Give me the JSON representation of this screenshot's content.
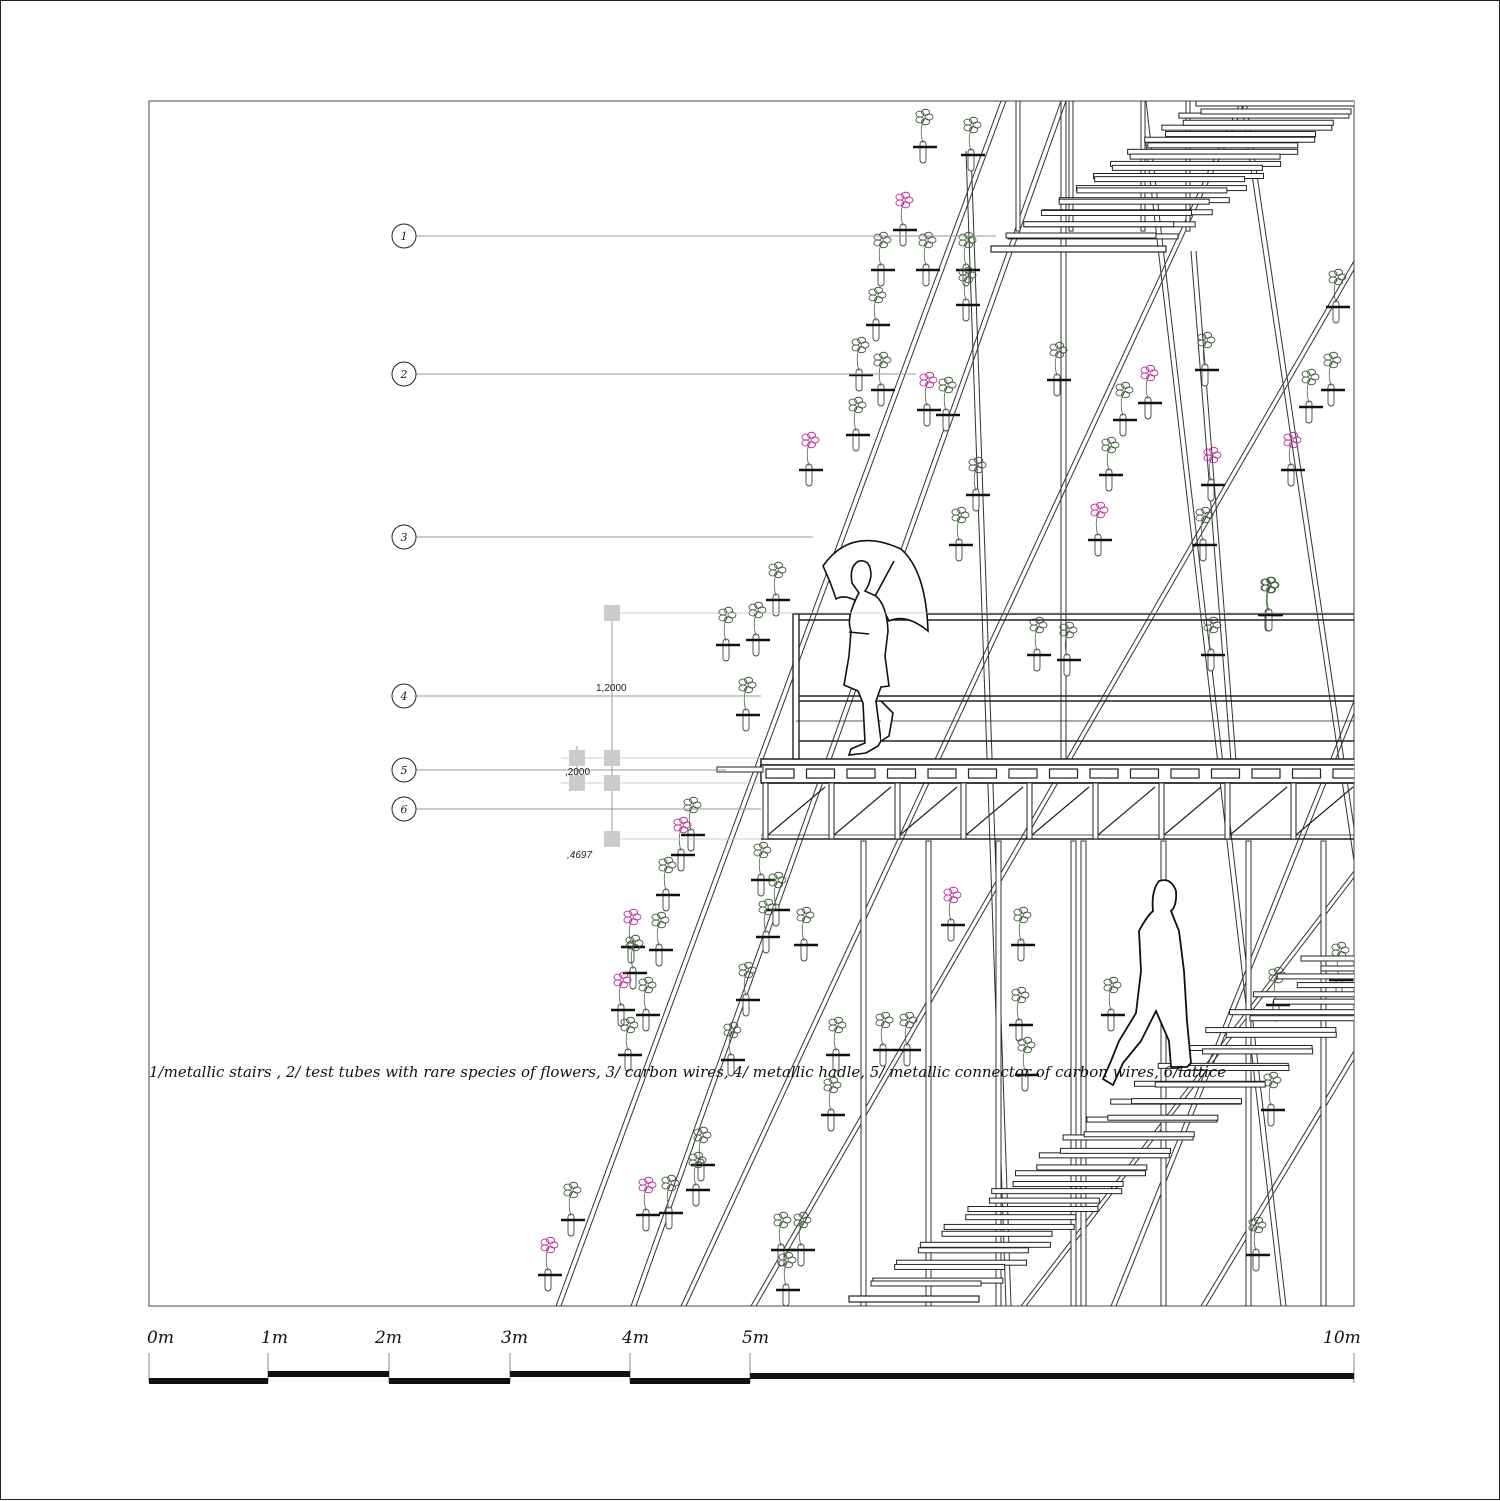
{
  "callouts": [
    {
      "number": "1"
    },
    {
      "number": "2"
    },
    {
      "number": "3"
    },
    {
      "number": "4"
    },
    {
      "number": "5"
    },
    {
      "number": "6"
    }
  ],
  "dimensions": {
    "handrail_height": "1,2000",
    "connector": ",2000",
    "lattice": ",4697"
  },
  "scale_bar": {
    "labels": [
      "0m",
      "1m",
      "2m",
      "3m",
      "4m",
      "5m",
      "10m"
    ]
  },
  "caption": "1/metallic stairs , 2/ test tubes with rare species of flowers, 3/ carbon wires, 4/ metallic hadle, 5/ metallic connector of carbon wires, 6/lattice",
  "colors": {
    "line": "#222222",
    "leader": "#999999",
    "flower_pink": "#c0299a",
    "flower_green": "#3f5a3a",
    "dimension_box": "#cccccc"
  }
}
